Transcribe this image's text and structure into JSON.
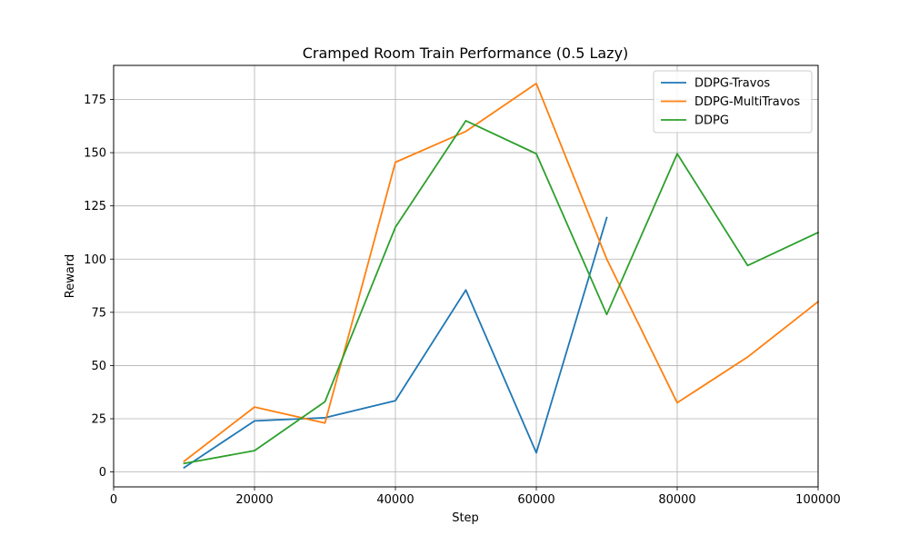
{
  "chart_data": {
    "type": "line",
    "title": "Cramped Room Train Performance (0.5 Lazy)",
    "xlabel": "Step",
    "ylabel": "Reward",
    "xlim": [
      0,
      100000
    ],
    "ylim": [
      -7,
      191
    ],
    "xticks": [
      0,
      20000,
      40000,
      60000,
      80000,
      100000
    ],
    "yticks": [
      0,
      25,
      50,
      75,
      100,
      125,
      150,
      175
    ],
    "grid": true,
    "legend_position": "top-right",
    "series": [
      {
        "name": "DDPG-Travos",
        "color": "#1f77b4",
        "x": [
          10000,
          20000,
          30000,
          40000,
          50000,
          60000,
          70000
        ],
        "y": [
          2,
          24,
          25.5,
          33.5,
          85.5,
          9,
          119.5
        ]
      },
      {
        "name": "DDPG-MultiTravos",
        "color": "#ff7f0e",
        "x": [
          10000,
          20000,
          30000,
          40000,
          50000,
          60000,
          70000,
          80000,
          90000,
          100000
        ],
        "y": [
          5,
          30.5,
          23,
          145.5,
          160,
          182.5,
          100,
          32.5,
          54,
          80
        ]
      },
      {
        "name": "DDPG",
        "color": "#2ca02c",
        "x": [
          10000,
          20000,
          30000,
          40000,
          50000,
          60000,
          70000,
          80000,
          90000,
          100000
        ],
        "y": [
          4,
          10,
          33,
          115,
          165,
          149.5,
          74,
          149.5,
          97,
          112.5
        ]
      }
    ]
  }
}
